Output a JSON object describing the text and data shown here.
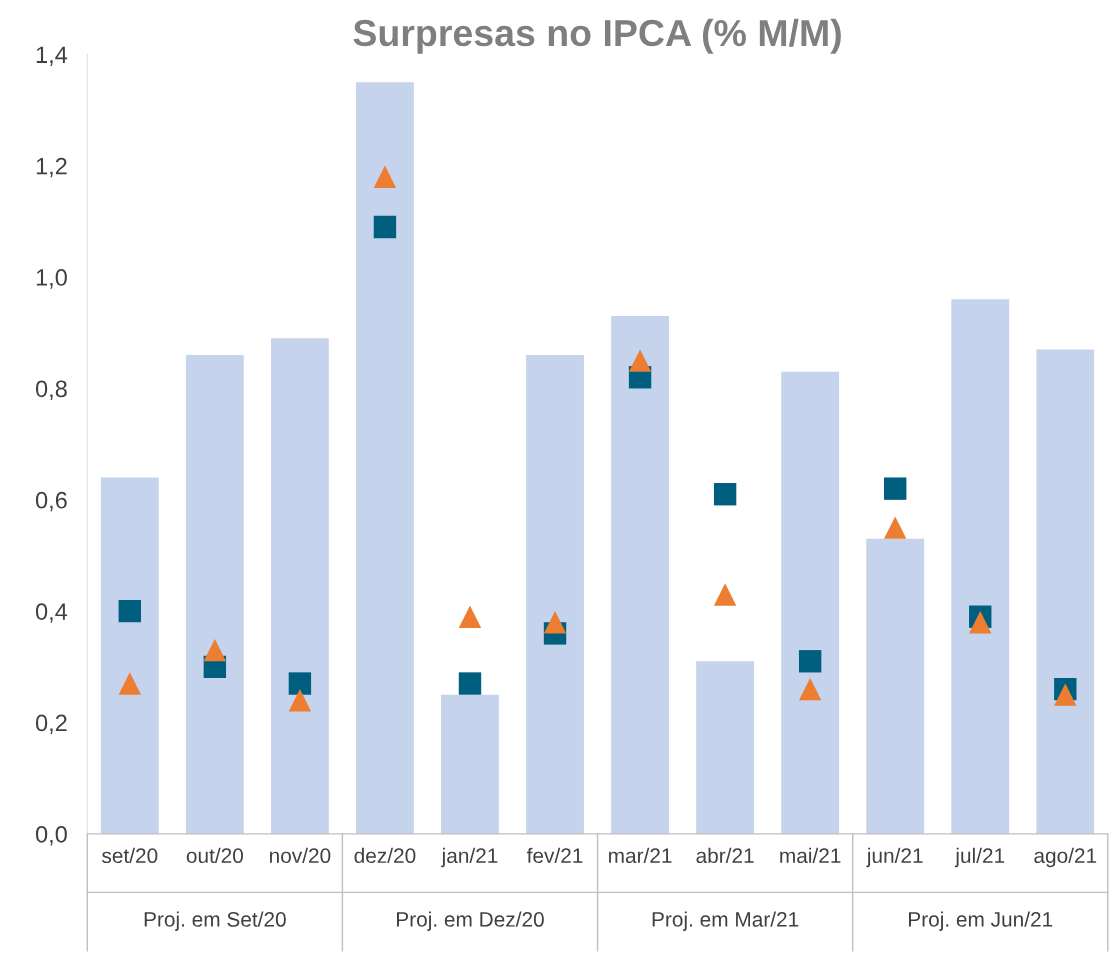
{
  "chart_data": {
    "type": "bar",
    "title": "Surpresas no IPCA (% M/M)",
    "categories": [
      "set/20",
      "out/20",
      "nov/20",
      "dez/20",
      "jan/21",
      "fev/21",
      "mar/21",
      "abr/21",
      "mai/21",
      "jun/21",
      "jul/21",
      "ago/21"
    ],
    "series": [
      {
        "color": "#c5d3ec",
        "values": [
          0.64,
          0.86,
          0.89,
          1.35,
          0.25,
          0.86,
          0.93,
          0.31,
          0.83,
          0.53,
          0.96,
          0.87
        ]
      },
      {
        "type": "scatter",
        "marker": "square",
        "color": "#005f7f",
        "values": [
          0.4,
          0.3,
          0.27,
          1.09,
          0.27,
          0.36,
          0.82,
          0.61,
          0.31,
          0.62,
          0.39,
          0.26
        ]
      },
      {
        "type": "scatter",
        "marker": "triangle",
        "color": "#ed7d31",
        "values": [
          0.27,
          0.33,
          0.24,
          1.18,
          0.39,
          0.38,
          0.85,
          0.43,
          0.26,
          0.55,
          0.38,
          0.25
        ]
      }
    ],
    "ylim": [
      0,
      1.4
    ],
    "yticks": [
      {
        "value": 0,
        "label": "0,0"
      },
      {
        "value": 0.2,
        "label": "0,2"
      },
      {
        "value": 0.4,
        "label": "0,4"
      },
      {
        "value": 0.6,
        "label": "0,6"
      },
      {
        "value": 0.8,
        "label": "0,8"
      },
      {
        "value": 1.0,
        "label": "1,0"
      },
      {
        "value": 1.2,
        "label": "1,2"
      },
      {
        "value": 1.4,
        "label": "1,4"
      }
    ],
    "grid": false,
    "legend": false,
    "annotations": [
      "Proj. em Set/20",
      "Proj. em Dez/20",
      "Proj. em Mar/21",
      "Proj. em Jun/21"
    ]
  }
}
